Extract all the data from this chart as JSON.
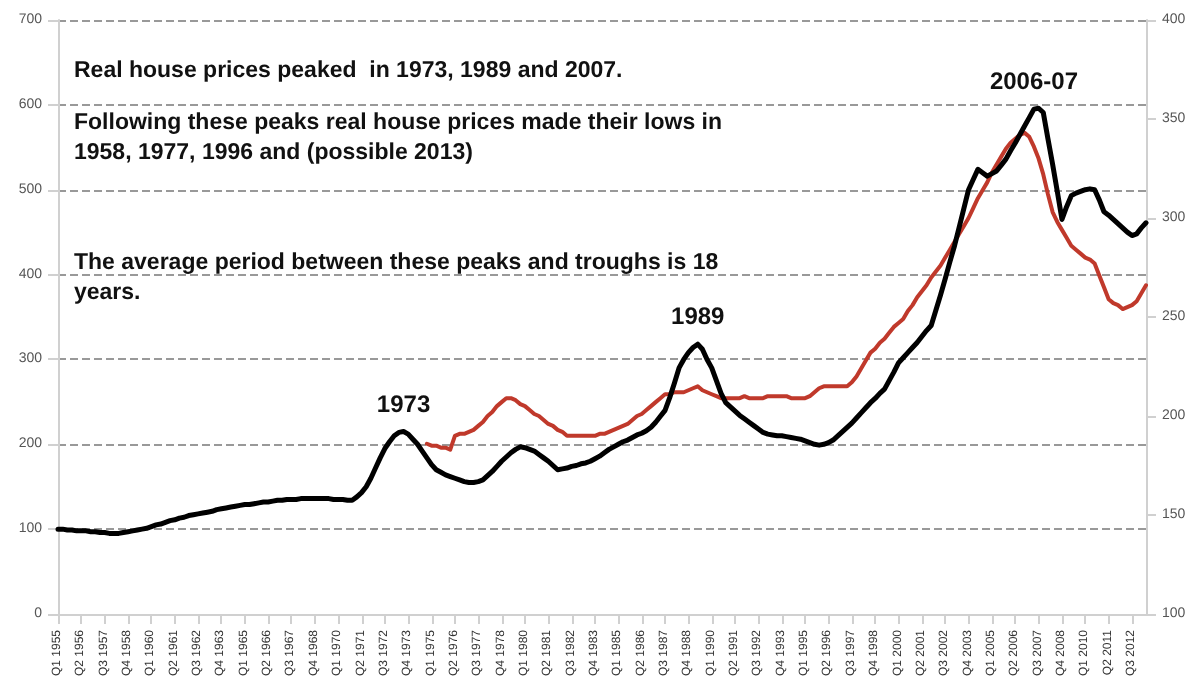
{
  "chart_data": {
    "type": "line",
    "marker": "none",
    "grid": "y",
    "categories": [
      "Q1 1955",
      null,
      null,
      null,
      null,
      "Q2 1956",
      null,
      null,
      null,
      null,
      "Q3 1957",
      null,
      null,
      null,
      null,
      "Q4 1958",
      null,
      null,
      null,
      null,
      "Q1 1960",
      null,
      null,
      null,
      null,
      "Q2 1961",
      null,
      null,
      null,
      null,
      "Q3 1962",
      null,
      null,
      null,
      null,
      "Q4 1963",
      null,
      null,
      null,
      null,
      "Q1 1965",
      null,
      null,
      null,
      null,
      "Q2 1966",
      null,
      null,
      null,
      null,
      "Q3 1967",
      null,
      null,
      null,
      null,
      "Q4 1968",
      null,
      null,
      null,
      null,
      "Q1 1970",
      null,
      null,
      null,
      null,
      "Q2 1971",
      null,
      null,
      null,
      null,
      "Q3 1972",
      null,
      null,
      null,
      null,
      "Q4 1973",
      null,
      null,
      null,
      null,
      "Q1 1975",
      null,
      null,
      null,
      null,
      "Q2 1976",
      null,
      null,
      null,
      null,
      "Q3 1977",
      null,
      null,
      null,
      null,
      "Q4 1978",
      null,
      null,
      null,
      null,
      "Q1 1980",
      null,
      null,
      null,
      null,
      "Q2 1981",
      null,
      null,
      null,
      null,
      "Q3 1982",
      null,
      null,
      null,
      null,
      "Q4 1983",
      null,
      null,
      null,
      null,
      "Q1 1985",
      null,
      null,
      null,
      null,
      "Q2 1986",
      null,
      null,
      null,
      null,
      "Q3 1987",
      null,
      null,
      null,
      null,
      "Q4 1988",
      null,
      null,
      null,
      null,
      "Q1 1990",
      null,
      null,
      null,
      null,
      "Q2 1991",
      null,
      null,
      null,
      null,
      "Q3 1992",
      null,
      null,
      null,
      null,
      "Q4 1993",
      null,
      null,
      null,
      null,
      "Q1 1995",
      null,
      null,
      null,
      null,
      "Q2 1996",
      null,
      null,
      null,
      null,
      "Q3 1997",
      null,
      null,
      null,
      null,
      "Q4 1998",
      null,
      null,
      null,
      null,
      "Q1 2000",
      null,
      null,
      null,
      null,
      "Q2 2001",
      null,
      null,
      null,
      null,
      "Q3 2002",
      null,
      null,
      null,
      null,
      "Q4 2003",
      null,
      null,
      null,
      null,
      "Q1 2005",
      null,
      null,
      null,
      null,
      "Q2 2006",
      null,
      null,
      null,
      null,
      "Q3 2007",
      null,
      null,
      null,
      null,
      "Q4 2008",
      null,
      null,
      null,
      null,
      "Q1 2010",
      null,
      null,
      null,
      null,
      "Q2 2011",
      null,
      null,
      null,
      null,
      "Q3 2012",
      null,
      null,
      null
    ],
    "ylim": [
      0,
      700
    ],
    "yticks": [
      0,
      100,
      200,
      300,
      400,
      500,
      600,
      700
    ],
    "y2lim": [
      100,
      400
    ],
    "y2ticks": [
      100,
      150,
      200,
      250,
      300,
      350,
      400
    ],
    "series": [
      {
        "color": "#000000",
        "values": [
          100,
          100,
          99,
          99,
          98,
          98,
          98,
          97,
          97,
          96,
          96,
          95,
          95,
          95,
          96,
          97,
          98,
          99,
          100,
          101,
          103,
          105,
          106,
          108,
          110,
          111,
          113,
          114,
          116,
          117,
          118,
          119,
          120,
          121,
          123,
          124,
          125,
          126,
          127,
          128,
          129,
          129,
          130,
          131,
          132,
          132,
          133,
          134,
          134,
          135,
          135,
          135,
          136,
          136,
          136,
          136,
          136,
          136,
          136,
          135,
          135,
          135,
          134,
          134,
          138,
          143,
          150,
          160,
          172,
          184,
          195,
          203,
          210,
          214,
          215,
          212,
          206,
          200,
          192,
          184,
          176,
          170,
          167,
          164,
          162,
          160,
          158,
          156,
          155,
          155,
          156,
          158,
          163,
          168,
          174,
          180,
          185,
          190,
          194,
          197,
          196,
          194,
          192,
          188,
          184,
          180,
          175,
          170,
          171,
          172,
          174,
          175,
          177,
          178,
          180,
          183,
          186,
          190,
          194,
          197,
          200,
          203,
          205,
          208,
          211,
          213,
          216,
          220,
          226,
          233,
          240,
          255,
          272,
          290,
          300,
          308,
          314,
          318,
          312,
          300,
          290,
          275,
          260,
          249,
          244,
          239,
          234,
          230,
          226,
          222,
          218,
          214,
          212,
          211,
          210,
          210,
          209,
          208,
          207,
          206,
          204,
          202,
          200,
          199,
          200,
          202,
          205,
          210,
          215,
          220,
          225,
          231,
          237,
          243,
          249,
          254,
          260,
          265,
          275,
          285,
          296,
          302,
          308,
          314,
          320,
          327,
          334,
          340,
          358,
          376,
          395,
          415,
          434,
          456,
          478,
          500,
          512,
          524,
          520,
          516,
          519,
          522,
          529,
          536,
          546,
          555,
          565,
          575,
          585,
          595,
          596,
          591,
          560,
          530,
          498,
          465,
          480,
          493,
          496,
          498,
          500,
          501,
          500,
          488,
          474,
          470,
          465,
          460,
          455,
          450,
          446,
          448,
          455,
          461
        ]
      },
      {
        "color": "#c0392b",
        "axis": "y2",
        "values": [
          null,
          null,
          null,
          null,
          null,
          null,
          null,
          null,
          null,
          null,
          null,
          null,
          null,
          null,
          null,
          null,
          null,
          null,
          null,
          null,
          null,
          null,
          null,
          null,
          null,
          null,
          null,
          null,
          null,
          null,
          null,
          null,
          null,
          null,
          null,
          null,
          null,
          null,
          null,
          null,
          null,
          null,
          null,
          null,
          null,
          null,
          null,
          null,
          null,
          null,
          null,
          null,
          null,
          null,
          null,
          null,
          null,
          null,
          null,
          null,
          null,
          null,
          null,
          null,
          null,
          null,
          null,
          null,
          null,
          null,
          null,
          null,
          null,
          null,
          null,
          null,
          null,
          null,
          null,
          186,
          185,
          185,
          184,
          184,
          183,
          190,
          191,
          191,
          192,
          193,
          195,
          197,
          200,
          202,
          205,
          207,
          209,
          209,
          208,
          206,
          205,
          203,
          201,
          200,
          198,
          196,
          195,
          193,
          192,
          190,
          190,
          190,
          190,
          190,
          190,
          190,
          191,
          191,
          192,
          193,
          194,
          195,
          196,
          198,
          200,
          201,
          203,
          205,
          207,
          209,
          211,
          211,
          212,
          212,
          212,
          213,
          214,
          215,
          213,
          212,
          211,
          210,
          209,
          209,
          209,
          209,
          209,
          210,
          209,
          209,
          209,
          209,
          210,
          210,
          210,
          210,
          210,
          209,
          209,
          209,
          209,
          210,
          212,
          214,
          215,
          215,
          215,
          215,
          215,
          215,
          217,
          220,
          224,
          228,
          232,
          234,
          237,
          239,
          242,
          245,
          247,
          249,
          253,
          256,
          260,
          263,
          266,
          270,
          273,
          276,
          280,
          284,
          288,
          292,
          296,
          300,
          305,
          310,
          314,
          318,
          323,
          327,
          331,
          335,
          338,
          340,
          342,
          343,
          341,
          336,
          330,
          322,
          312,
          303,
          298,
          294,
          290,
          286,
          284,
          282,
          280,
          279,
          277,
          271,
          265,
          259,
          257,
          256,
          254,
          255,
          256,
          258,
          262,
          266
        ]
      }
    ],
    "annotations": [
      "Real house prices peaked  in 1973, 1989 and 2007.",
      "Following these peaks real house prices made their lows in 1958, 1977, 1996 and (possible 2013)",
      "The average period between these peaks and troughs is 18 years.",
      {
        "text": "1973",
        "y": 215
      },
      {
        "text": "1989",
        "y": 318
      },
      {
        "text": "2006-07",
        "y": 595
      }
    ]
  }
}
